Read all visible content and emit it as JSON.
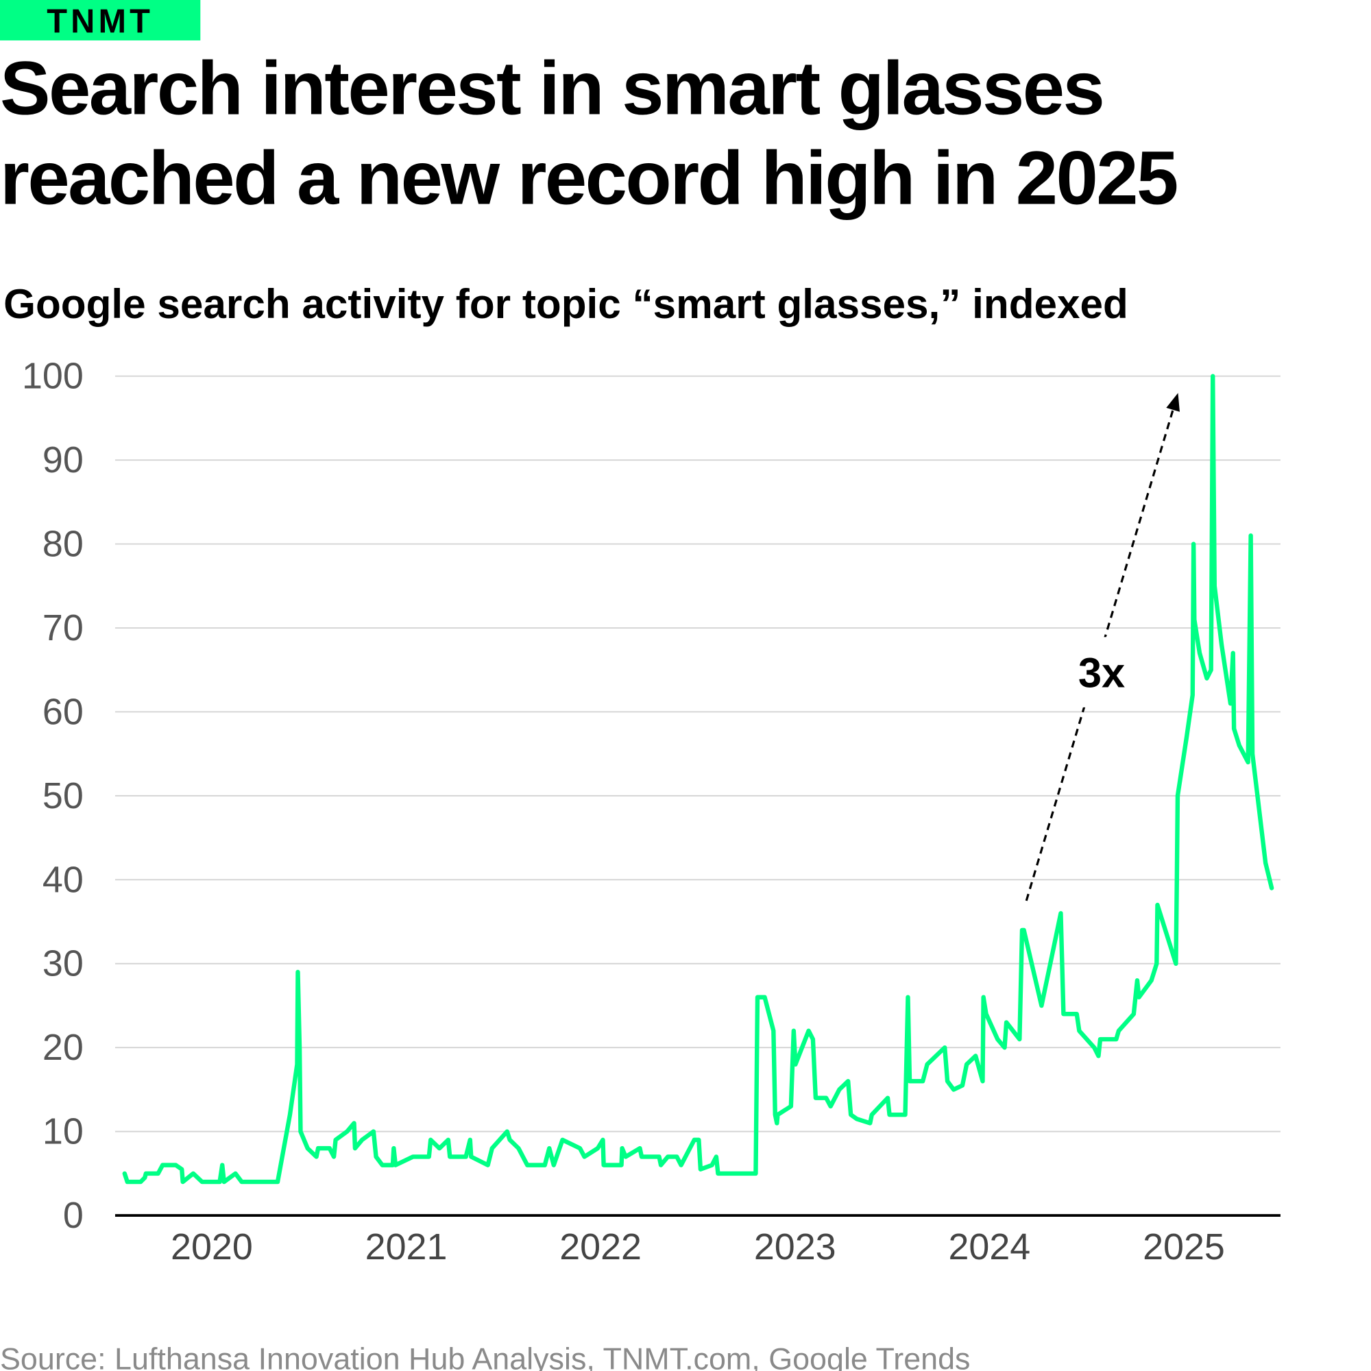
{
  "brand": {
    "logo_text": "TNMT",
    "color": "#00ff85"
  },
  "chart_data": {
    "type": "line",
    "title": "Search interest in smart glasses reached a new record high in 2025",
    "title_lines": [
      "Search interest in smart glasses",
      "reached a new record high in 2025"
    ],
    "subtitle": "Google search activity for topic “smart glasses,” indexed",
    "xlabel": "",
    "ylabel": "",
    "xlim": [
      2019.503,
      2025.497
    ],
    "ylim": [
      0,
      100
    ],
    "x_ticks": [
      2020,
      2021,
      2022,
      2023,
      2024,
      2025
    ],
    "x_tick_labels": [
      "2020",
      "2021",
      "2022",
      "2023",
      "2024",
      "2025"
    ],
    "y_ticks": [
      0,
      10,
      20,
      30,
      40,
      50,
      60,
      70,
      80,
      90,
      100
    ],
    "y_tick_labels": [
      "0",
      "10",
      "20",
      "30",
      "40",
      "50",
      "60",
      "70",
      "80",
      "90",
      "100"
    ],
    "grid": true,
    "line_color": "#00ff85",
    "series": [
      {
        "x": [
          2019.552,
          2019.566,
          2019.589,
          2019.634,
          2019.656,
          2019.661,
          2019.724,
          2019.747,
          2019.815,
          2019.846,
          2019.851,
          2019.905,
          2019.95,
          2020.041,
          2020.054,
          2020.063,
          2020.122,
          2020.154,
          2020.339,
          2020.402,
          2020.439,
          2020.443,
          2020.452,
          2020.457,
          2020.493,
          2020.538,
          2020.547,
          2020.606,
          2020.628,
          2020.637,
          2020.696,
          2020.732,
          2020.737,
          2020.773,
          2020.832,
          2020.845,
          2020.877,
          2020.931,
          2020.936,
          2020.945,
          2021.035,
          2021.117,
          2021.126,
          2021.171,
          2021.216,
          2021.225,
          2021.307,
          2021.329,
          2021.334,
          2021.42,
          2021.442,
          2021.519,
          2021.533,
          2021.578,
          2021.623,
          2021.713,
          2021.736,
          2021.759,
          2021.804,
          2021.894,
          2021.917,
          2021.985,
          2022.012,
          2022.016,
          2022.107,
          2022.111,
          2022.129,
          2022.202,
          2022.211,
          2022.301,
          2022.31,
          2022.346,
          2022.392,
          2022.414,
          2022.482,
          2022.505,
          2022.514,
          2022.573,
          2022.595,
          2022.604,
          2022.798,
          2022.807,
          2022.844,
          2022.889,
          2022.898,
          2022.907,
          2022.911,
          2022.979,
          2022.993,
          2023.002,
          2023.07,
          2023.092,
          2023.106,
          2023.16,
          2023.183,
          2023.228,
          2023.273,
          2023.287,
          2023.318,
          2023.386,
          2023.395,
          2023.477,
          2023.486,
          2023.522,
          2023.567,
          2023.581,
          2023.59,
          2023.657,
          2023.68,
          2023.77,
          2023.784,
          2023.816,
          2023.861,
          2023.883,
          2023.929,
          2023.965,
          2023.969,
          2023.983,
          2024.042,
          2024.078,
          2024.087,
          2024.155,
          2024.168,
          2024.177,
          2024.268,
          2024.313,
          2024.367,
          2024.381,
          2024.449,
          2024.462,
          2024.539,
          2024.561,
          2024.57,
          2024.652,
          2024.665,
          2024.742,
          2024.76,
          2024.769,
          2024.833,
          2024.86,
          2024.864,
          2024.959,
          2024.964,
          2024.968,
          2025.014,
          2025.045,
          2025.05,
          2025.054,
          2025.081,
          2025.118,
          2025.14,
          2025.149,
          2025.158,
          2025.194,
          2025.24,
          2025.253,
          2025.258,
          2025.285,
          2025.33,
          2025.344,
          2025.353,
          2025.42,
          2025.452
        ],
        "y": [
          5,
          4,
          4,
          4,
          4.5,
          5,
          5,
          6,
          6,
          5.5,
          4,
          5,
          4,
          4,
          6,
          4,
          5,
          4,
          4,
          12,
          18,
          29,
          20,
          10,
          8,
          7,
          8,
          8,
          7,
          9,
          10,
          11,
          8,
          9,
          10,
          7,
          6,
          6,
          8,
          6,
          7,
          7,
          9,
          8,
          9,
          7,
          7,
          9,
          7,
          6,
          8,
          10,
          9,
          8,
          6,
          6,
          8,
          6,
          9,
          8,
          7,
          8,
          9,
          6,
          6,
          8,
          7,
          8,
          7,
          7,
          6,
          7,
          7,
          6,
          9,
          9,
          5.5,
          6,
          7,
          5,
          5,
          26,
          26,
          22,
          12,
          11,
          12,
          13,
          22,
          18,
          22,
          21,
          14,
          14,
          13,
          15,
          16,
          12,
          11.5,
          11,
          12,
          14,
          12,
          12,
          12,
          26,
          16,
          16,
          18,
          20,
          16,
          15,
          15.5,
          18,
          19,
          16,
          26,
          24,
          21,
          20,
          23,
          21,
          34,
          34,
          25,
          30,
          36,
          24,
          24,
          22,
          20,
          19,
          21,
          21,
          22,
          24,
          28,
          26,
          28,
          30,
          37,
          30,
          40,
          50,
          57,
          62,
          80,
          71,
          67,
          64,
          65,
          100,
          75,
          68,
          61,
          67,
          58,
          56,
          54,
          81,
          55,
          42,
          39
        ]
      }
    ],
    "annotations": [
      {
        "text": "3x",
        "arrow_from": [
          2024.19,
          37.5
        ],
        "arrow_to": [
          2024.97,
          98
        ]
      }
    ]
  },
  "source": "Source: Lufthansa Innovation Hub Analysis, TNMT.com, Google Trends"
}
